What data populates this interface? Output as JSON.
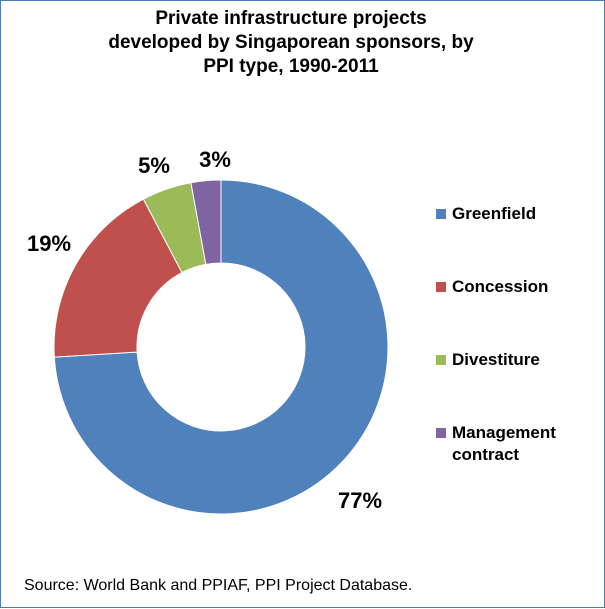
{
  "chart_data": {
    "type": "pie",
    "donut": true,
    "title_lines": [
      "Private infrastructure projects",
      "developed by Singaporean sponsors, by",
      "PPI type, 1990-2011"
    ],
    "categories": [
      "Greenfield",
      "Concession",
      "Divestiture",
      "Management contract"
    ],
    "values": [
      77,
      19,
      5,
      3
    ],
    "data_labels": [
      "77%",
      "19%",
      "5%",
      "3%"
    ],
    "unit": "%",
    "colors": [
      "#4f81bd",
      "#c0504d",
      "#9bbb59",
      "#8064a2"
    ],
    "legend_position": "right",
    "legend": [
      {
        "lines": [
          "Greenfield"
        ]
      },
      {
        "lines": [
          "Concession"
        ]
      },
      {
        "lines": [
          "Divestiture"
        ]
      },
      {
        "lines": [
          "Management",
          "contract"
        ]
      }
    ]
  },
  "source": "Source:  World Bank and PPIAF, PPI Project Database."
}
